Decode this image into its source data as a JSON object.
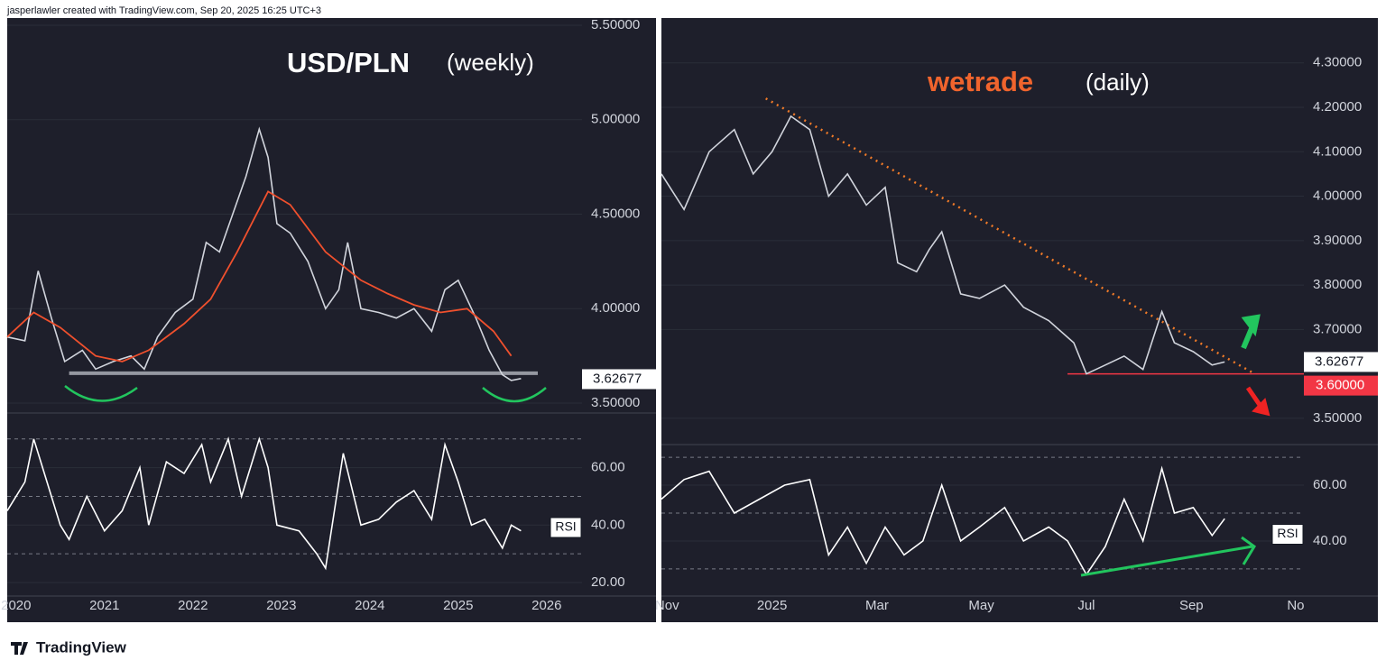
{
  "header": "jasperlawler created with TradingView.com, Sep 20, 2025 16:25 UTC+3",
  "footer": "TradingView",
  "chart_data": [
    {
      "type": "line",
      "title": "USD/PLN",
      "subtitle": "(weekly)",
      "xlim": [
        2019.9,
        2026.4
      ],
      "ylim": [
        3.462,
        5.538
      ],
      "yticks": [
        {
          "value": 3.5,
          "label": "3.50000"
        },
        {
          "value": 4.0,
          "label": "4.00000"
        },
        {
          "value": 4.5,
          "label": "4.50000"
        },
        {
          "value": 5.0,
          "label": "5.00000"
        },
        {
          "value": 5.5,
          "label": "5.50000"
        }
      ],
      "grid": true,
      "support": 3.658,
      "price_label": 3.62677,
      "series": [
        {
          "color": "#d1d4dc",
          "x": [
            2019.9,
            2020.1,
            2020.25,
            2020.4,
            2020.55,
            2020.75,
            2020.9,
            2021.1,
            2021.3,
            2021.45,
            2021.6,
            2021.8,
            2022.0,
            2022.15,
            2022.3,
            2022.45,
            2022.6,
            2022.75,
            2022.85,
            2022.95,
            2023.1,
            2023.3,
            2023.5,
            2023.65,
            2023.75,
            2023.9,
            2024.1,
            2024.3,
            2024.5,
            2024.7,
            2024.85,
            2025.0,
            2025.1,
            2025.2,
            2025.35,
            2025.5,
            2025.6,
            2025.71
          ],
          "values": [
            3.85,
            3.83,
            4.2,
            3.95,
            3.72,
            3.78,
            3.68,
            3.72,
            3.75,
            3.68,
            3.85,
            3.98,
            4.05,
            4.35,
            4.3,
            4.5,
            4.7,
            4.95,
            4.8,
            4.45,
            4.4,
            4.25,
            4.0,
            4.1,
            4.35,
            4.0,
            3.98,
            3.95,
            4.0,
            3.88,
            4.1,
            4.15,
            4.05,
            3.95,
            3.78,
            3.65,
            3.62,
            3.63
          ]
        },
        {
          "color": "#f0502d",
          "x": [
            2019.9,
            2020.2,
            2020.5,
            2020.9,
            2021.2,
            2021.5,
            2021.9,
            2022.2,
            2022.5,
            2022.85,
            2023.1,
            2023.5,
            2023.9,
            2024.2,
            2024.5,
            2024.8,
            2025.1,
            2025.4,
            2025.6
          ],
          "values": [
            3.85,
            3.98,
            3.9,
            3.75,
            3.72,
            3.78,
            3.92,
            4.05,
            4.3,
            4.62,
            4.55,
            4.3,
            4.15,
            4.08,
            4.02,
            3.98,
            4.0,
            3.88,
            3.75
          ]
        }
      ]
    },
    {
      "type": "line",
      "badge": "RSI",
      "xlim": [
        2019.9,
        2026.4
      ],
      "ylim": [
        15.6,
        78.4
      ],
      "yticks": [
        {
          "value": 20,
          "label": "20.00"
        },
        {
          "value": 40,
          "label": "40.00"
        },
        {
          "value": 60,
          "label": "60.00"
        }
      ],
      "bands": [
        30,
        50,
        70
      ],
      "grid": true,
      "xticks": [
        2020,
        2021,
        2022,
        2023,
        2024,
        2025,
        2026
      ],
      "series": [
        {
          "color": "#ffffff",
          "x": [
            2019.9,
            2020.1,
            2020.2,
            2020.35,
            2020.5,
            2020.6,
            2020.8,
            2021.0,
            2021.2,
            2021.4,
            2021.5,
            2021.7,
            2021.9,
            2022.1,
            2022.2,
            2022.4,
            2022.55,
            2022.75,
            2022.85,
            2022.95,
            2023.2,
            2023.4,
            2023.5,
            2023.7,
            2023.9,
            2024.1,
            2024.3,
            2024.5,
            2024.7,
            2024.85,
            2025.0,
            2025.15,
            2025.3,
            2025.5,
            2025.6,
            2025.71
          ],
          "values": [
            45,
            55,
            70,
            55,
            40,
            35,
            50,
            38,
            45,
            60,
            40,
            62,
            58,
            68,
            55,
            70,
            50,
            70,
            60,
            40,
            38,
            30,
            25,
            65,
            40,
            42,
            48,
            52,
            42,
            68,
            55,
            40,
            42,
            32,
            40,
            38
          ]
        }
      ]
    },
    {
      "type": "line",
      "logo": "wetrade",
      "subtitle": "(daily)",
      "xlim": [
        2024.824,
        2025.846
      ],
      "ylim": [
        3.447,
        4.401
      ],
      "yticks": [
        {
          "value": 3.5,
          "label": "3.50000"
        },
        {
          "value": 3.7,
          "label": "3.70000"
        },
        {
          "value": 3.8,
          "label": "3.80000"
        },
        {
          "value": 3.9,
          "label": "3.90000"
        },
        {
          "value": 4.0,
          "label": "4.00000"
        },
        {
          "value": 4.1,
          "label": "4.10000"
        },
        {
          "value": 4.2,
          "label": "4.20000"
        },
        {
          "value": 4.3,
          "label": "4.30000"
        }
      ],
      "grid": true,
      "price_label": 3.62677,
      "level": {
        "value": 3.6,
        "label": "3.60000",
        "from": 2025.47
      },
      "trendline": {
        "x": [
          2024.99,
          2025.768
        ],
        "values": [
          4.22,
          3.6
        ],
        "color": "#f07a28"
      },
      "series": [
        {
          "color": "#d1d4dc",
          "x": [
            2024.824,
            2024.86,
            2024.9,
            2024.94,
            2024.97,
            2025.0,
            2025.03,
            2025.06,
            2025.09,
            2025.12,
            2025.15,
            2025.18,
            2025.2,
            2025.23,
            2025.25,
            2025.27,
            2025.3,
            2025.33,
            2025.37,
            2025.4,
            2025.44,
            2025.48,
            2025.5,
            2025.53,
            2025.56,
            2025.59,
            2025.62,
            2025.64,
            2025.67,
            2025.7,
            2025.72
          ],
          "values": [
            4.05,
            3.97,
            4.1,
            4.15,
            4.05,
            4.1,
            4.18,
            4.15,
            4.0,
            4.05,
            3.98,
            4.02,
            3.85,
            3.83,
            3.88,
            3.92,
            3.78,
            3.77,
            3.8,
            3.75,
            3.72,
            3.67,
            3.6,
            3.62,
            3.64,
            3.61,
            3.74,
            3.67,
            3.65,
            3.62,
            3.62677
          ]
        }
      ]
    },
    {
      "type": "line",
      "badge": "RSI",
      "xlim": [
        2024.824,
        2025.846
      ],
      "ylim": [
        20.6,
        73.9
      ],
      "yticks": [
        {
          "value": 40,
          "label": "40.00"
        },
        {
          "value": 60,
          "label": "60.00"
        }
      ],
      "bands": [
        30,
        50,
        70
      ],
      "grid": true,
      "xticks": [
        {
          "value": 2024.833,
          "label": "Nov"
        },
        2025,
        {
          "value": 2025.167,
          "label": "Mar"
        },
        {
          "value": 2025.333,
          "label": "May"
        },
        {
          "value": 2025.5,
          "label": "Jul"
        },
        {
          "value": 2025.667,
          "label": "Sep"
        },
        {
          "value": 2025.833,
          "label": "No"
        }
      ],
      "series": [
        {
          "color": "#ffffff",
          "x": [
            2024.824,
            2024.86,
            2024.9,
            2024.94,
            2024.98,
            2025.02,
            2025.06,
            2025.09,
            2025.12,
            2025.15,
            2025.18,
            2025.21,
            2025.24,
            2025.27,
            2025.3,
            2025.33,
            2025.37,
            2025.4,
            2025.44,
            2025.47,
            2025.5,
            2025.53,
            2025.56,
            2025.59,
            2025.62,
            2025.64,
            2025.67,
            2025.7,
            2025.72
          ],
          "values": [
            55,
            62,
            65,
            50,
            55,
            60,
            62,
            35,
            45,
            32,
            45,
            35,
            40,
            60,
            40,
            45,
            52,
            40,
            45,
            40,
            28,
            38,
            55,
            40,
            66,
            50,
            52,
            42,
            48
          ]
        }
      ]
    }
  ]
}
